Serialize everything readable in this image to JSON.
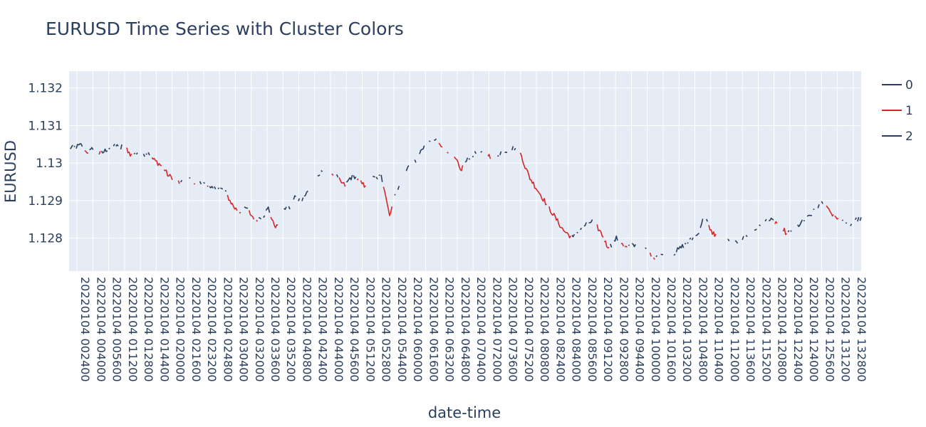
{
  "chart_data": {
    "type": "line",
    "title": "EURUSD Time Series with Cluster Colors",
    "xlabel": "date-time",
    "ylabel": "EURUSD",
    "ylim": [
      1.12712,
      1.13245
    ],
    "yticks": [
      1.128,
      1.129,
      1.13,
      1.131,
      1.132
    ],
    "ytick_labels": [
      "1.128",
      "1.129",
      "1.13",
      "1.131",
      "1.132"
    ],
    "x_range_minutes": [
      0,
      660
    ],
    "xticks": [
      "20220104 002400",
      "20220104 004000",
      "20220104 005600",
      "20220104 011200",
      "20220104 012800",
      "20220104 014400",
      "20220104 020000",
      "20220104 021600",
      "20220104 023200",
      "20220104 024800",
      "20220104 030400",
      "20220104 032000",
      "20220104 033600",
      "20220104 035200",
      "20220104 040800",
      "20220104 042400",
      "20220104 044000",
      "20220104 045600",
      "20220104 051200",
      "20220104 052800",
      "20220104 054400",
      "20220104 060000",
      "20220104 061600",
      "20220104 063200",
      "20220104 064800",
      "20220104 070400",
      "20220104 072000",
      "20220104 073600",
      "20220104 075200",
      "20220104 080800",
      "20220104 082400",
      "20220104 084000",
      "20220104 085600",
      "20220104 091200",
      "20220104 092800",
      "20220104 094400",
      "20220104 100000",
      "20220104 101600",
      "20220104 103200",
      "20220104 104800",
      "20220104 110400",
      "20220104 112000",
      "20220104 113600",
      "20220104 115200",
      "20220104 120800",
      "20220104 122400",
      "20220104 124000",
      "20220104 125600",
      "20220104 131200",
      "20220104 132800"
    ],
    "grid": true,
    "legend_position": "right",
    "series": [
      {
        "name": "0",
        "color": "#2a3f5f"
      },
      {
        "name": "1",
        "color": "#d62728"
      },
      {
        "name": "2",
        "color": "#2a3f5f"
      }
    ],
    "anchors": [
      [
        0,
        1.1304
      ],
      [
        5,
        1.13042
      ],
      [
        10,
        1.13048
      ],
      [
        12,
        1.13045
      ],
      [
        14,
        1.1303
      ],
      [
        18,
        1.13032
      ],
      [
        22,
        1.1305
      ],
      [
        25,
        1.13025
      ],
      [
        28,
        1.13028
      ],
      [
        33,
        1.1304
      ],
      [
        40,
        1.1305
      ],
      [
        42,
        1.1303
      ],
      [
        46,
        1.13068
      ],
      [
        48,
        1.1304
      ],
      [
        51,
        1.1302
      ],
      [
        55,
        1.13028
      ],
      [
        58,
        1.13018
      ],
      [
        62,
        1.13022
      ],
      [
        66,
        1.1303
      ],
      [
        70,
        1.1301
      ],
      [
        75,
        1.12998
      ],
      [
        78,
        1.1299
      ],
      [
        83,
        1.12965
      ],
      [
        88,
        1.1296
      ],
      [
        93,
        1.12945
      ],
      [
        97,
        1.12955
      ],
      [
        100,
        1.1296
      ],
      [
        104,
        1.1295
      ],
      [
        108,
        1.12945
      ],
      [
        112,
        1.1295
      ],
      [
        118,
        1.1293
      ],
      [
        124,
        1.12935
      ],
      [
        130,
        1.12925
      ],
      [
        134,
        1.129
      ],
      [
        138,
        1.1288
      ],
      [
        142,
        1.1287
      ],
      [
        148,
        1.1288
      ],
      [
        152,
        1.1286
      ],
      [
        156,
        1.1285
      ],
      [
        162,
        1.1286
      ],
      [
        166,
        1.1288
      ],
      [
        170,
        1.1284
      ],
      [
        173,
        1.1283
      ],
      [
        176,
        1.1285
      ],
      [
        180,
        1.1288
      ],
      [
        184,
        1.1288
      ],
      [
        188,
        1.1291
      ],
      [
        193,
        1.129
      ],
      [
        198,
        1.1292
      ],
      [
        203,
        1.1294
      ],
      [
        207,
        1.1296
      ],
      [
        212,
        1.12985
      ],
      [
        218,
        1.12975
      ],
      [
        222,
        1.12968
      ],
      [
        226,
        1.1295
      ],
      [
        230,
        1.1294
      ],
      [
        234,
        1.1296
      ],
      [
        238,
        1.12965
      ],
      [
        242,
        1.1295
      ],
      [
        246,
        1.1294
      ],
      [
        250,
        1.1296
      ],
      [
        256,
        1.1296
      ],
      [
        260,
        1.12965
      ],
      [
        263,
        1.1293
      ],
      [
        267,
        1.1286
      ],
      [
        270,
        1.129
      ],
      [
        273,
        1.1293
      ],
      [
        277,
        1.1294
      ],
      [
        281,
        1.1298
      ],
      [
        286,
        1.1301
      ],
      [
        290,
        1.13
      ],
      [
        294,
        1.1304
      ],
      [
        299,
        1.1305
      ],
      [
        303,
        1.1306
      ],
      [
        306,
        1.13062
      ],
      [
        310,
        1.1305
      ],
      [
        314,
        1.1304
      ],
      [
        319,
        1.1302
      ],
      [
        323,
        1.13005
      ],
      [
        326,
        1.1298
      ],
      [
        331,
        1.13005
      ],
      [
        335,
        1.1302
      ],
      [
        340,
        1.13028
      ],
      [
        345,
        1.1303
      ],
      [
        350,
        1.1302
      ],
      [
        354,
        1.1301
      ],
      [
        358,
        1.13025
      ],
      [
        362,
        1.13035
      ],
      [
        366,
        1.1303
      ],
      [
        370,
        1.1304
      ],
      [
        373,
        1.1304
      ],
      [
        377,
        1.1302
      ],
      [
        380,
        1.1299
      ],
      [
        384,
        1.1296
      ],
      [
        388,
        1.1294
      ],
      [
        392,
        1.1292
      ],
      [
        396,
        1.129
      ],
      [
        400,
        1.1288
      ],
      [
        404,
        1.1286
      ],
      [
        408,
        1.1284
      ],
      [
        412,
        1.1282
      ],
      [
        416,
        1.1281
      ],
      [
        420,
        1.128
      ],
      [
        424,
        1.1282
      ],
      [
        428,
        1.1283
      ],
      [
        432,
        1.1284
      ],
      [
        436,
        1.12845
      ],
      [
        440,
        1.1283
      ],
      [
        444,
        1.1281
      ],
      [
        448,
        1.1278
      ],
      [
        452,
        1.1278
      ],
      [
        456,
        1.128
      ],
      [
        460,
        1.1279
      ],
      [
        464,
        1.12775
      ],
      [
        468,
        1.1278
      ],
      [
        472,
        1.1278
      ],
      [
        476,
        1.12775
      ],
      [
        480,
        1.1277
      ],
      [
        484,
        1.1276
      ],
      [
        488,
        1.1275
      ],
      [
        492,
        1.1276
      ],
      [
        496,
        1.1275
      ],
      [
        500,
        1.1275
      ],
      [
        504,
        1.1276
      ],
      [
        508,
        1.1277
      ],
      [
        512,
        1.1278
      ],
      [
        516,
        1.1279
      ],
      [
        520,
        1.128
      ],
      [
        524,
        1.1281
      ],
      [
        527,
        1.1284
      ],
      [
        530,
        1.1286
      ],
      [
        534,
        1.1282
      ],
      [
        538,
        1.1281
      ],
      [
        542,
        1.12805
      ],
      [
        546,
        1.128
      ],
      [
        550,
        1.1279
      ],
      [
        554,
        1.12785
      ],
      [
        558,
        1.1279
      ],
      [
        562,
        1.128
      ],
      [
        566,
        1.1281
      ],
      [
        570,
        1.1282
      ],
      [
        574,
        1.1283
      ],
      [
        578,
        1.1284
      ],
      [
        582,
        1.1285
      ],
      [
        586,
        1.12845
      ],
      [
        590,
        1.1284
      ],
      [
        594,
        1.1283
      ],
      [
        598,
        1.1281
      ],
      [
        602,
        1.1282
      ],
      [
        606,
        1.1283
      ],
      [
        610,
        1.1284
      ],
      [
        614,
        1.1285
      ],
      [
        618,
        1.1286
      ],
      [
        622,
        1.1288
      ],
      [
        626,
        1.1289
      ],
      [
        630,
        1.129
      ],
      [
        634,
        1.1287
      ],
      [
        638,
        1.1286
      ],
      [
        642,
        1.1285
      ],
      [
        646,
        1.1284
      ],
      [
        650,
        1.1283
      ],
      [
        654,
        1.1285
      ],
      [
        660,
        1.1285
      ]
    ]
  }
}
